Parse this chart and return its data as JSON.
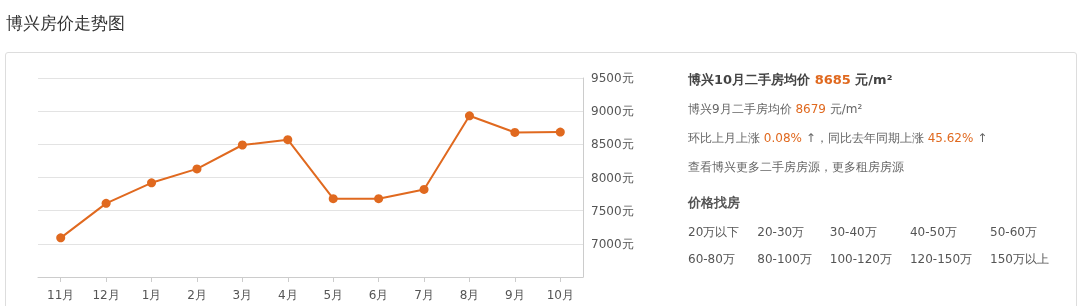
{
  "chart_data": {
    "type": "line",
    "title": "博兴房价走势图",
    "categories": [
      "11月",
      "12月",
      "1月",
      "2月",
      "3月",
      "4月",
      "5月",
      "6月",
      "7月",
      "8月",
      "9月",
      "10月"
    ],
    "series": [
      {
        "color": "#e0691f",
        "values": [
          7090,
          7610,
          7920,
          8130,
          8490,
          8570,
          7680,
          7680,
          7820,
          8930,
          8679,
          8685
        ]
      }
    ],
    "ylim": [
      6500,
      9500
    ],
    "yticks": [
      {
        "value": 7000,
        "label": "7000元"
      },
      {
        "value": 7500,
        "label": "7500元"
      },
      {
        "value": 8000,
        "label": "8000元"
      },
      {
        "value": 8500,
        "label": "8500元"
      },
      {
        "value": 9000,
        "label": "9000元"
      },
      {
        "value": 9500,
        "label": "9500元"
      }
    ],
    "grid": "y",
    "marker": "circle",
    "line_style": "solid",
    "annotations": [
      "博兴10月二手房均价 8685 元/m²",
      "博兴9月二手房均价 8679 元/m²",
      "环比上月上涨 0.08% ↑，同比去年同期上涨 45.62% ↑",
      "查看博兴更多二手房房源，更多租房房源",
      "价格找房",
      "20万以下",
      "20-30万",
      "30-40万",
      "40-50万",
      "50-60万",
      "60-80万",
      "80-100万",
      "100-120万",
      "120-150万",
      "150万以上"
    ]
  }
}
